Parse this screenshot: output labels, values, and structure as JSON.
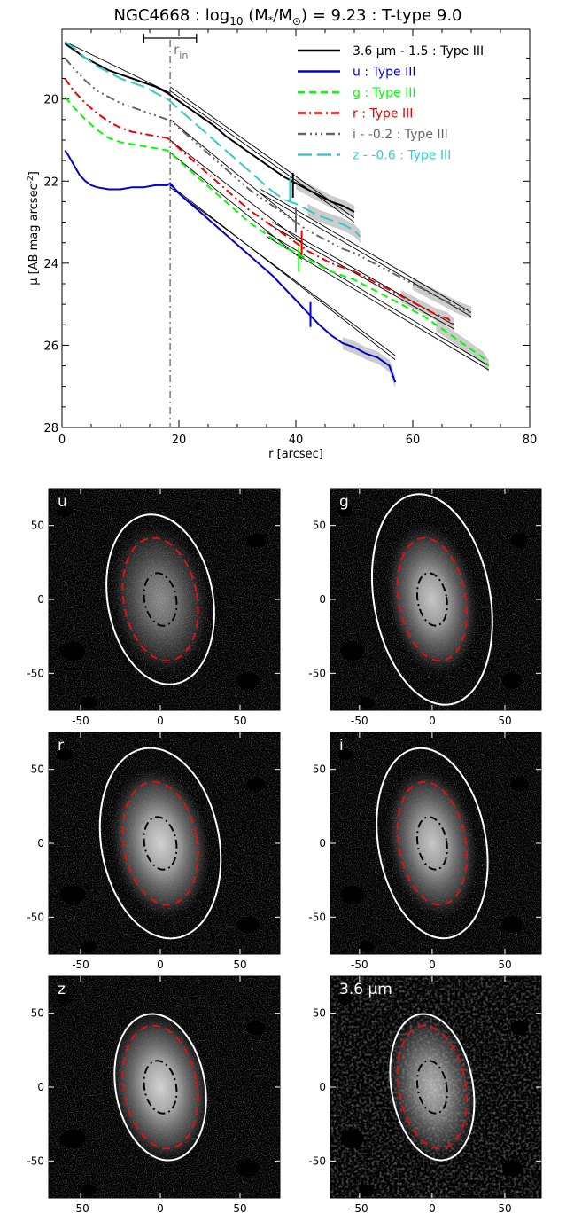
{
  "title": {
    "prefix": "NGC4668 : log",
    "sub": "10",
    "mid": " (M",
    "star": "*",
    "div": "/M",
    "sun": "⊙",
    "suffix": ") = 9.23 : T-type 9.0"
  },
  "chart_data": [
    {
      "type": "line",
      "name": "profile",
      "xlabel": "r [arcsec]",
      "ylabel_main": "μ [AB mag arcsec",
      "ylabel_sup": "-2",
      "ylabel_end": "]",
      "xlim": [
        0,
        80
      ],
      "ylim": [
        28,
        18.3
      ],
      "y_reversed": true,
      "xticks": [
        0,
        20,
        40,
        60,
        80
      ],
      "yticks": [
        20,
        22,
        24,
        26,
        28
      ],
      "r_in": 18.5,
      "r_in_label": "r",
      "r_in_sub": "in",
      "r_in_bar": [
        14,
        23
      ],
      "legend_position": "top-right",
      "series": [
        {
          "name": "3.6 μm - 1.5 : Type III",
          "color": "#000000",
          "dash": "",
          "x": [
            0.5,
            2,
            4,
            6,
            8,
            10,
            12,
            14,
            16,
            18,
            18.5,
            20,
            22,
            24,
            26,
            28,
            30,
            32,
            34,
            36,
            38,
            40,
            42,
            44,
            46,
            48,
            50
          ],
          "y": [
            18.65,
            18.8,
            19.0,
            19.15,
            19.3,
            19.4,
            19.5,
            19.6,
            19.7,
            19.85,
            19.9,
            20.05,
            20.25,
            20.45,
            20.65,
            20.9,
            21.1,
            21.3,
            21.5,
            21.7,
            21.9,
            22.05,
            22.2,
            22.35,
            22.5,
            22.6,
            22.75
          ],
          "fits": [
            [
              [
                0.5,
                18.6
              ],
              [
                18.5,
                19.85
              ]
            ],
            [
              [
                18.5,
                19.7
              ],
              [
                50,
                22.9
              ]
            ],
            [
              [
                18.5,
                19.8
              ],
              [
                50,
                23.0
              ]
            ]
          ],
          "break_x": 39.5,
          "break_y": 22.1
        },
        {
          "name": "u : Type III",
          "color": "#0000cc",
          "dash": "",
          "x": [
            0.5,
            1,
            2,
            3,
            4,
            5,
            6,
            8,
            10,
            12,
            14,
            16,
            18,
            18.5,
            20,
            22,
            24,
            26,
            28,
            30,
            32,
            34,
            36,
            38,
            40,
            42,
            44,
            46,
            48,
            50,
            52,
            54,
            56,
            57
          ],
          "y": [
            21.25,
            21.35,
            21.6,
            21.85,
            22.0,
            22.1,
            22.15,
            22.2,
            22.2,
            22.15,
            22.15,
            22.1,
            22.1,
            22.05,
            22.3,
            22.55,
            22.8,
            23.05,
            23.3,
            23.55,
            23.8,
            24.05,
            24.3,
            24.6,
            24.9,
            25.2,
            25.5,
            25.75,
            25.95,
            26.05,
            26.2,
            26.3,
            26.5,
            26.9
          ],
          "fits": [
            [
              [
                18.5,
                22.1
              ],
              [
                57,
                26.35
              ]
            ],
            [
              [
                18.5,
                22.15
              ],
              [
                57,
                26.25
              ]
            ]
          ],
          "break_x": 42.5,
          "break_y": 25.25
        },
        {
          "name": "g : Type III",
          "color": "#00ff00",
          "dash": "8,5",
          "x": [
            0.5,
            2,
            4,
            6,
            8,
            10,
            12,
            14,
            16,
            18,
            18.5,
            20,
            22,
            24,
            26,
            28,
            30,
            32,
            34,
            36,
            38,
            40,
            42,
            44,
            46,
            48,
            50,
            52,
            54,
            56,
            58,
            60,
            62,
            64,
            66,
            68,
            70,
            72,
            73
          ],
          "y": [
            19.95,
            20.2,
            20.5,
            20.75,
            20.95,
            21.05,
            21.1,
            21.15,
            21.2,
            21.25,
            21.3,
            21.5,
            21.75,
            22.0,
            22.25,
            22.5,
            22.75,
            23.0,
            23.2,
            23.4,
            23.6,
            23.75,
            23.9,
            24.05,
            24.2,
            24.3,
            24.4,
            24.55,
            24.7,
            24.85,
            25.0,
            25.15,
            25.3,
            25.5,
            25.7,
            25.9,
            26.1,
            26.3,
            26.5
          ],
          "fits": [
            [
              [
                18.5,
                21.3
              ],
              [
                41,
                23.9
              ]
            ],
            [
              [
                35,
                23.35
              ],
              [
                73,
                26.6
              ]
            ],
            [
              [
                35,
                23.25
              ],
              [
                73,
                26.5
              ]
            ]
          ],
          "break_x": 40.5,
          "break_y": 23.9
        },
        {
          "name": "r : Type III",
          "color": "#ee0000",
          "dash": "9,4,2,4",
          "x": [
            0.5,
            2,
            4,
            6,
            8,
            10,
            12,
            14,
            16,
            18,
            18.5,
            20,
            22,
            24,
            26,
            28,
            30,
            32,
            34,
            36,
            38,
            40,
            42,
            44,
            46,
            48,
            50,
            52,
            54,
            56,
            58,
            60,
            62,
            64,
            66,
            67
          ],
          "y": [
            19.5,
            19.8,
            20.1,
            20.35,
            20.55,
            20.7,
            20.8,
            20.85,
            20.9,
            20.95,
            21.0,
            21.2,
            21.45,
            21.7,
            21.95,
            22.2,
            22.45,
            22.7,
            22.9,
            23.1,
            23.3,
            23.5,
            23.7,
            23.85,
            24.0,
            24.1,
            24.2,
            24.35,
            24.5,
            24.65,
            24.8,
            24.95,
            25.1,
            25.25,
            25.35,
            25.5
          ],
          "fits": [
            [
              [
                18.5,
                21.0
              ],
              [
                42,
                23.6
              ]
            ],
            [
              [
                36,
                23.1
              ],
              [
                67,
                25.6
              ]
            ],
            [
              [
                36,
                23.0
              ],
              [
                67,
                25.5
              ]
            ]
          ],
          "break_x": 41,
          "break_y": 23.5
        },
        {
          "name": "i - -0.2 : Type III",
          "color": "#666666",
          "dash": "10,4,2,4,2,4,2,4",
          "x": [
            0.5,
            2,
            4,
            6,
            8,
            10,
            12,
            14,
            16,
            18,
            18.5,
            20,
            22,
            24,
            26,
            28,
            30,
            32,
            34,
            36,
            38,
            40,
            42,
            44,
            46,
            48,
            50,
            52,
            54,
            56,
            58,
            60,
            62,
            64,
            66,
            68,
            70
          ],
          "y": [
            19.0,
            19.25,
            19.55,
            19.8,
            19.95,
            20.1,
            20.2,
            20.3,
            20.4,
            20.5,
            20.5,
            20.7,
            20.95,
            21.2,
            21.45,
            21.7,
            21.95,
            22.2,
            22.4,
            22.6,
            22.8,
            23.0,
            23.2,
            23.35,
            23.5,
            23.65,
            23.75,
            23.9,
            24.05,
            24.2,
            24.35,
            24.5,
            24.65,
            24.8,
            24.95,
            25.1,
            25.2
          ],
          "fits": [
            [
              [
                18.5,
                20.5
              ],
              [
                40,
                23.0
              ]
            ],
            [
              [
                34,
                22.3
              ],
              [
                70,
                25.3
              ]
            ],
            [
              [
                34,
                22.2
              ],
              [
                70,
                25.2
              ]
            ]
          ],
          "break_x": 40,
          "break_y": 22.95
        },
        {
          "name": "z - -0.6 : Type III",
          "color": "#33cccc",
          "dash": "16,6",
          "x": [
            0.5,
            2,
            4,
            6,
            8,
            10,
            12,
            14,
            16,
            18,
            18.5,
            20,
            22,
            24,
            26,
            28,
            30,
            32,
            34,
            36,
            38,
            40,
            42,
            44,
            46,
            48,
            50,
            51
          ],
          "y": [
            18.6,
            18.75,
            19.0,
            19.2,
            19.35,
            19.5,
            19.6,
            19.7,
            19.85,
            20.0,
            20.05,
            20.25,
            20.5,
            20.75,
            21.0,
            21.25,
            21.5,
            21.75,
            22.0,
            22.25,
            22.45,
            22.55,
            22.7,
            22.85,
            22.95,
            23.05,
            23.2,
            23.35
          ],
          "fits": [],
          "break_x": 39,
          "break_y": 22.2
        }
      ]
    },
    {
      "type": "heatmap",
      "panels": [
        {
          "label": "u",
          "band": "u",
          "xlim": [
            -70,
            75
          ],
          "ylim": [
            -75,
            75
          ],
          "outer_a": 58,
          "outer_b": 33,
          "mid_a": 42,
          "mid_b": 23,
          "inner_a": 18,
          "inner_b": 10,
          "cx": 0,
          "cy": 0
        },
        {
          "label": "g",
          "band": "g",
          "xlim": [
            -70,
            75
          ],
          "ylim": [
            -75,
            75
          ],
          "outer_a": 72,
          "outer_b": 40,
          "mid_a": 42,
          "mid_b": 23,
          "inner_a": 18,
          "inner_b": 10,
          "cx": 0,
          "cy": 0
        },
        {
          "label": "r",
          "band": "r",
          "xlim": [
            -70,
            75
          ],
          "ylim": [
            -75,
            75
          ],
          "outer_a": 65,
          "outer_b": 37,
          "mid_a": 42,
          "mid_b": 23,
          "inner_a": 18,
          "inner_b": 10,
          "cx": 0,
          "cy": 0
        },
        {
          "label": "i",
          "band": "i",
          "xlim": [
            -70,
            75
          ],
          "ylim": [
            -75,
            75
          ],
          "outer_a": 65,
          "outer_b": 37,
          "mid_a": 42,
          "mid_b": 23,
          "inner_a": 18,
          "inner_b": 10,
          "cx": 0,
          "cy": 0
        },
        {
          "label": "z",
          "band": "z",
          "xlim": [
            -70,
            75
          ],
          "ylim": [
            -75,
            75
          ],
          "outer_a": 50,
          "outer_b": 28,
          "mid_a": 42,
          "mid_b": 23,
          "inner_a": 18,
          "inner_b": 10,
          "cx": 0,
          "cy": 0
        },
        {
          "label": "3.6 μm",
          "band": "ir",
          "xlim": [
            -70,
            75
          ],
          "ylim": [
            -75,
            75
          ],
          "outer_a": 50,
          "outer_b": 28,
          "mid_a": 42,
          "mid_b": 23,
          "inner_a": 18,
          "inner_b": 10,
          "cx": 0,
          "cy": 0
        }
      ],
      "xticks": [
        -50,
        0,
        50
      ],
      "yticks": [
        50,
        0,
        -50
      ]
    }
  ]
}
